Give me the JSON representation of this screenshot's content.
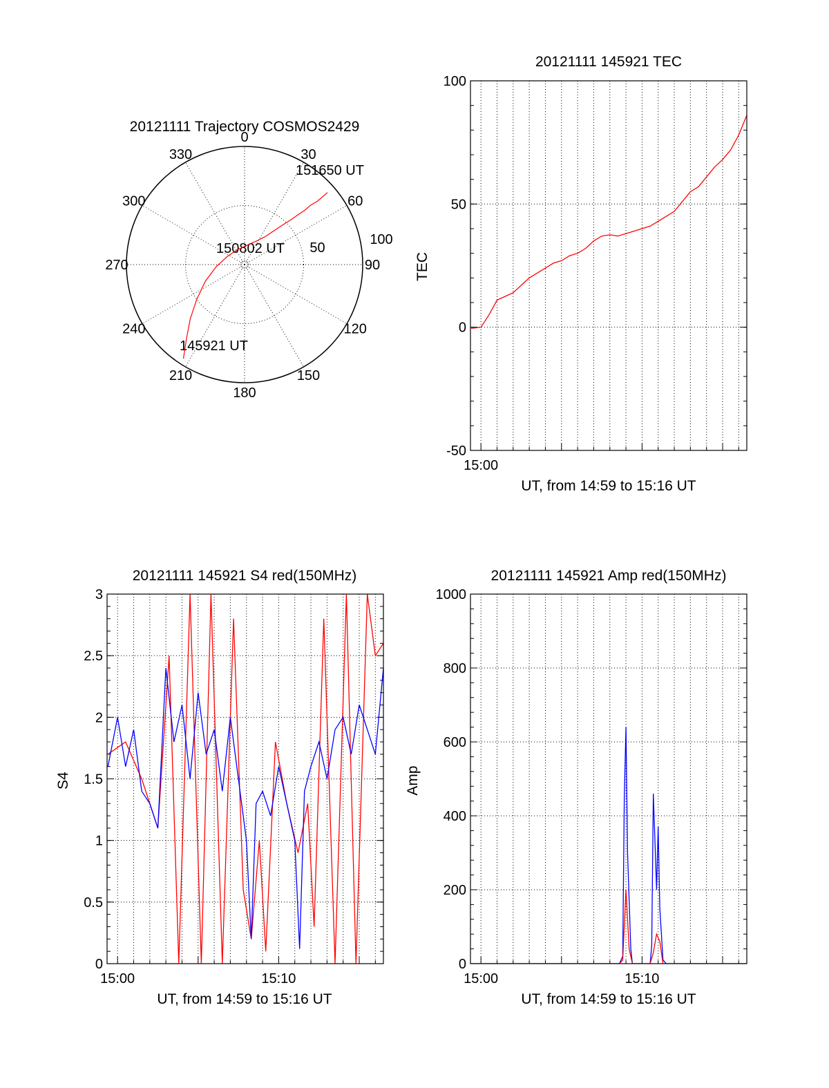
{
  "chart_data": [
    {
      "id": "trajectory",
      "type": "polar",
      "title": "20121111 Trajectory COSMOS2429",
      "azimuth_labels": [
        "0",
        "30",
        "60",
        "90",
        "120",
        "150",
        "180",
        "210",
        "240",
        "270",
        "300",
        "330"
      ],
      "ring_labels": [
        "50",
        "100"
      ],
      "annotations": {
        "start": "145921 UT",
        "mid": "150802 UT",
        "end": "151650 UT"
      },
      "series": [
        {
          "color": "#ff0000",
          "points": [
            [
              213,
              95
            ],
            [
              218,
              80
            ],
            [
              225,
              65
            ],
            [
              234,
              50
            ],
            [
              247,
              36
            ],
            [
              266,
              24
            ],
            [
              296,
              16
            ],
            [
              334,
              14
            ],
            [
              10,
              17
            ],
            [
              28,
              23
            ],
            [
              37,
              30
            ],
            [
              41,
              38
            ],
            [
              44,
              47
            ],
            [
              46,
              55
            ],
            [
              47,
              62
            ],
            [
              48,
              69
            ],
            [
              48,
              75
            ],
            [
              49,
              82
            ],
            [
              49,
              88
            ],
            [
              49,
              93
            ]
          ]
        }
      ]
    },
    {
      "id": "tec",
      "type": "line",
      "title": "20121111 145921 TEC",
      "xlabel": "UT, from 14:59 to 15:16 UT",
      "ylabel": "TEC",
      "xlim": [
        -0.65,
        16.5
      ],
      "ylim": [
        -50,
        100
      ],
      "yticks": [
        -50,
        0,
        50,
        100
      ],
      "xtick_labels": [
        {
          "x": 0,
          "label": "15:00"
        }
      ],
      "grid": true,
      "series": [
        {
          "color": "#ff0000",
          "x": [
            -0.6,
            0.0,
            0.5,
            1.0,
            1.5,
            2.0,
            2.5,
            3.0,
            3.5,
            4.0,
            4.5,
            5.0,
            5.5,
            6.0,
            6.5,
            7.0,
            7.5,
            8.0,
            8.5,
            9.0,
            9.5,
            10.0,
            10.5,
            11.0,
            11.5,
            12.0,
            12.5,
            13.0,
            13.5,
            14.0,
            14.5,
            15.0,
            15.5,
            16.0,
            16.5
          ],
          "y": [
            -0.5,
            0,
            5,
            11,
            12.5,
            14,
            17,
            20,
            22,
            24,
            26,
            27,
            29,
            30,
            32,
            35,
            37,
            37.5,
            37,
            38,
            39,
            40,
            41,
            43,
            45,
            47,
            51,
            55,
            57,
            61,
            65,
            68,
            72,
            78,
            86
          ]
        }
      ]
    },
    {
      "id": "s4",
      "type": "line",
      "title": "20121111 145921 S4 red(150MHz)",
      "xlabel": "UT, from 14:59 to 15:16 UT",
      "ylabel": "S4",
      "xlim": [
        -0.65,
        16.5
      ],
      "ylim": [
        0,
        3
      ],
      "yticks": [
        "0",
        "0.5",
        "1",
        "1.5",
        "2",
        "2.5",
        "3"
      ],
      "xtick_labels": [
        {
          "x": 0,
          "label": "15:00"
        },
        {
          "x": 10,
          "label": "15:10"
        }
      ],
      "grid": true,
      "series": [
        {
          "color": "#ff0000",
          "x": [
            -0.6,
            0.5,
            1.5,
            2.5,
            3.2,
            3.8,
            4.5,
            5.2,
            5.8,
            6.5,
            7.2,
            7.8,
            8.3,
            8.8,
            9.2,
            9.8,
            10.5,
            11.2,
            11.8,
            12.2,
            12.8,
            13.5,
            14.2,
            14.8,
            15.5,
            16.0,
            16.5
          ],
          "y": [
            1.7,
            1.8,
            1.5,
            1.1,
            2.5,
            0.0,
            3.0,
            0.0,
            3.0,
            0.0,
            2.8,
            0.6,
            0.2,
            1.0,
            0.1,
            1.8,
            1.3,
            0.9,
            1.3,
            0.3,
            2.8,
            0.0,
            3.0,
            0.0,
            3.0,
            2.5,
            2.6
          ]
        },
        {
          "color": "#0000ff",
          "x": [
            -0.6,
            0.0,
            0.5,
            1.0,
            1.5,
            2.0,
            2.5,
            3.0,
            3.5,
            4.0,
            4.5,
            5.0,
            5.5,
            6.0,
            6.5,
            7.0,
            7.5,
            8.0,
            8.3,
            8.6,
            9.0,
            9.5,
            10.0,
            10.5,
            11.0,
            11.3,
            11.6,
            12.0,
            12.5,
            13.0,
            13.5,
            14.0,
            14.5,
            15.0,
            15.5,
            16.0,
            16.5
          ],
          "y": [
            1.6,
            2.0,
            1.6,
            1.9,
            1.4,
            1.3,
            1.1,
            2.4,
            1.8,
            2.1,
            1.5,
            2.2,
            1.7,
            1.9,
            1.4,
            2.0,
            1.5,
            1.0,
            0.2,
            1.3,
            1.4,
            1.2,
            1.6,
            1.3,
            1.0,
            0.12,
            1.4,
            1.6,
            1.8,
            1.5,
            1.9,
            2.0,
            1.7,
            2.1,
            1.9,
            1.7,
            2.4
          ]
        }
      ]
    },
    {
      "id": "amp",
      "type": "line",
      "title": "20121111 145921 Amp red(150MHz)",
      "xlabel": "UT, from 14:59 to 15:16 UT",
      "ylabel": "Amp",
      "xlim": [
        -0.65,
        16.5
      ],
      "ylim": [
        0,
        1000
      ],
      "yticks": [
        0,
        200,
        400,
        600,
        800,
        1000
      ],
      "xtick_labels": [
        {
          "x": 0,
          "label": "15:00"
        },
        {
          "x": 10,
          "label": "15:10"
        }
      ],
      "grid": true,
      "series": [
        {
          "color": "#0000ff",
          "x": [
            -0.6,
            8.6,
            8.8,
            8.9,
            9.0,
            9.1,
            9.3,
            9.4,
            9.5,
            10.5,
            10.6,
            10.7,
            10.8,
            10.9,
            11.0,
            11.1,
            11.3,
            11.5,
            16.5
          ],
          "y": [
            0,
            0,
            20,
            450,
            640,
            300,
            40,
            0,
            0,
            0,
            50,
            460,
            330,
            200,
            370,
            150,
            10,
            0,
            0
          ]
        },
        {
          "color": "#ff0000",
          "x": [
            -0.6,
            8.6,
            8.8,
            9.0,
            9.2,
            9.4,
            10.5,
            10.7,
            10.9,
            11.1,
            11.3,
            16.5
          ],
          "y": [
            0,
            0,
            10,
            200,
            40,
            0,
            0,
            30,
            80,
            60,
            0,
            0
          ]
        }
      ]
    }
  ]
}
